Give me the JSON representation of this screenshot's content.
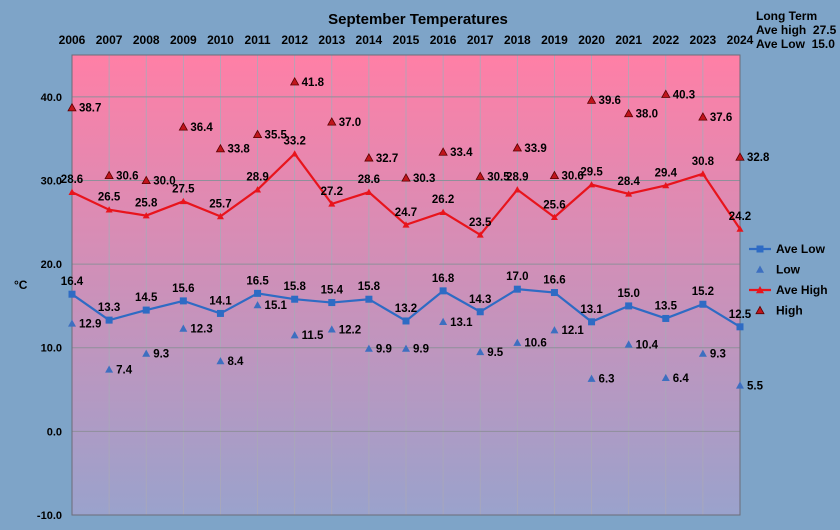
{
  "chart_data": {
    "type": "line",
    "title": "September Temperatures",
    "ylabel": "°C",
    "xlabel": "",
    "ylim": [
      -10,
      45
    ],
    "y_ticks": [
      "40.0",
      "30.0",
      "20.0",
      "10.0",
      "0.0",
      "-10.0"
    ],
    "y_tick_values": [
      40,
      30,
      20,
      10,
      0,
      -10
    ],
    "categories": [
      "2006",
      "2007",
      "2008",
      "2009",
      "2010",
      "2011",
      "2012",
      "2013",
      "2014",
      "2015",
      "2016",
      "2017",
      "2018",
      "2019",
      "2020",
      "2021",
      "2022",
      "2023",
      "2024"
    ],
    "grid": true,
    "legend_position": "right",
    "background": {
      "top": "#ff7fa6",
      "bottom": "#9aa2cc"
    },
    "series": [
      {
        "name": "Ave Low",
        "kind": "line",
        "marker": "square",
        "color": "#2e6bc4",
        "values": [
          16.4,
          13.3,
          14.5,
          15.6,
          14.1,
          16.5,
          15.8,
          15.4,
          15.8,
          13.2,
          16.8,
          14.3,
          17.0,
          16.6,
          13.1,
          15.0,
          13.5,
          15.2,
          12.5
        ],
        "labels": [
          "16.4",
          "13.3",
          "14.5",
          "15.6",
          "14.1",
          "16.5",
          "15.8",
          "15.4",
          "15.8",
          "13.2",
          "16.8",
          "14.3",
          "17.0",
          "16.6",
          "13.1",
          "15.0",
          "13.5",
          "15.2",
          "12.5"
        ]
      },
      {
        "name": "Low",
        "kind": "points",
        "marker": "triangle",
        "color": "#3d6fc0",
        "values": [
          12.9,
          7.4,
          9.3,
          12.3,
          8.4,
          15.1,
          11.5,
          12.2,
          9.9,
          9.9,
          13.1,
          9.5,
          10.6,
          12.1,
          6.3,
          10.4,
          6.4,
          9.3,
          5.5
        ],
        "labels": [
          "12.9",
          "7.4",
          "9.3",
          "12.3",
          "8.4",
          "15.1",
          "11.5",
          "12.2",
          "9.9",
          "9.9",
          "13.1",
          "9.5",
          "10.6",
          "12.1",
          "6.3",
          "10.4",
          "6.4",
          "9.3",
          "5.5"
        ]
      },
      {
        "name": "Ave High",
        "kind": "line",
        "marker": "triangle",
        "color": "#e8141c",
        "values": [
          28.6,
          26.5,
          25.8,
          27.5,
          25.7,
          28.9,
          33.2,
          27.2,
          28.6,
          24.7,
          26.2,
          23.5,
          28.9,
          25.6,
          29.5,
          28.4,
          29.4,
          30.8,
          24.2
        ],
        "labels": [
          "28.6",
          "26.5",
          "25.8",
          "27.5",
          "25.7",
          "28.9",
          "33.2",
          "27.2",
          "28.6",
          "24.7",
          "26.2",
          "23.5",
          "28.9",
          "25.6",
          "29.5",
          "28.4",
          "29.4",
          "30.8",
          "24.2"
        ]
      },
      {
        "name": "High",
        "kind": "points",
        "marker": "triangle",
        "color": "#c0151c",
        "values": [
          38.7,
          30.6,
          30.0,
          36.4,
          33.8,
          35.5,
          41.8,
          37.0,
          32.7,
          30.3,
          33.4,
          30.5,
          33.9,
          30.6,
          39.6,
          38.0,
          40.3,
          37.6,
          32.8
        ],
        "labels": [
          "38.7",
          "30.6",
          "30.0",
          "36.4",
          "33.8",
          "35.5",
          "41.8",
          "37.0",
          "32.7",
          "30.3",
          "33.4",
          "30.5",
          "33.9",
          "30.6",
          "39.6",
          "38.0",
          "40.3",
          "37.6",
          "32.8"
        ]
      }
    ],
    "annotation": {
      "lines": [
        "Long Term",
        "Ave high  27.5",
        "Ave Low  15.0"
      ]
    }
  }
}
